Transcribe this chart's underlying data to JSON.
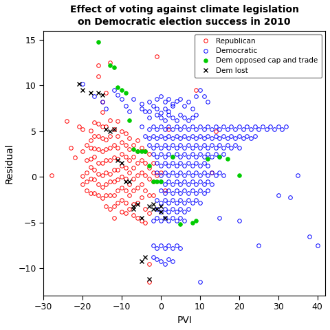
{
  "title": "Effect of voting against climate legislation\non Democratic election success in 2010",
  "xlabel": "PVI",
  "ylabel": "Residual",
  "xlim": [
    -30,
    42
  ],
  "ylim": [
    -13,
    16
  ],
  "xticks": [
    -30,
    -20,
    -10,
    0,
    10,
    20,
    30,
    40
  ],
  "yticks": [
    -10,
    -5,
    0,
    5,
    10,
    15
  ],
  "republican": [
    [
      -28,
      0.2
    ],
    [
      -24,
      6.1
    ],
    [
      -23,
      3.2
    ],
    [
      -22,
      2.1
    ],
    [
      -21,
      5.5
    ],
    [
      -20,
      5.2
    ],
    [
      -20,
      2.8
    ],
    [
      -20,
      0.1
    ],
    [
      -20,
      -0.8
    ],
    [
      -19,
      3.5
    ],
    [
      -19,
      1.8
    ],
    [
      -19,
      0.5
    ],
    [
      -19,
      -0.5
    ],
    [
      -19,
      -1.5
    ],
    [
      -18,
      5.1
    ],
    [
      -18,
      4.0
    ],
    [
      -18,
      3.2
    ],
    [
      -18,
      2.0
    ],
    [
      -18,
      1.1
    ],
    [
      -18,
      -0.2
    ],
    [
      -18,
      -1.8
    ],
    [
      -17,
      6.0
    ],
    [
      -17,
      4.5
    ],
    [
      -17,
      3.1
    ],
    [
      -17,
      2.2
    ],
    [
      -17,
      0.8
    ],
    [
      -17,
      -0.3
    ],
    [
      -17,
      -1.8
    ],
    [
      -16,
      12.2
    ],
    [
      -16,
      11.0
    ],
    [
      -16,
      5.8
    ],
    [
      -16,
      4.5
    ],
    [
      -16,
      3.0
    ],
    [
      -16,
      1.5
    ],
    [
      -16,
      0.3
    ],
    [
      -16,
      -0.8
    ],
    [
      -16,
      -2.0
    ],
    [
      -15,
      8.2
    ],
    [
      -15,
      7.1
    ],
    [
      -15,
      5.5
    ],
    [
      -15,
      4.2
    ],
    [
      -15,
      2.8
    ],
    [
      -15,
      1.5
    ],
    [
      -15,
      0.2
    ],
    [
      -15,
      -1.1
    ],
    [
      -15,
      -2.3
    ],
    [
      -14,
      9.2
    ],
    [
      -14,
      5.5
    ],
    [
      -14,
      4.1
    ],
    [
      -14,
      3.0
    ],
    [
      -14,
      1.8
    ],
    [
      -14,
      0.5
    ],
    [
      -14,
      -0.8
    ],
    [
      -14,
      -2.0
    ],
    [
      -14,
      -3.2
    ],
    [
      -13,
      12.5
    ],
    [
      -13,
      6.2
    ],
    [
      -13,
      4.5
    ],
    [
      -13,
      3.2
    ],
    [
      -13,
      1.8
    ],
    [
      -13,
      0.3
    ],
    [
      -13,
      -0.5
    ],
    [
      -13,
      -2.0
    ],
    [
      -13,
      -3.5
    ],
    [
      -12,
      5.2
    ],
    [
      -12,
      3.5
    ],
    [
      -12,
      2.1
    ],
    [
      -12,
      0.8
    ],
    [
      -12,
      -0.5
    ],
    [
      -12,
      -2.0
    ],
    [
      -12,
      -3.2
    ],
    [
      -12,
      -4.5
    ],
    [
      -11,
      6.1
    ],
    [
      -11,
      4.5
    ],
    [
      -11,
      3.2
    ],
    [
      -11,
      2.0
    ],
    [
      -11,
      0.8
    ],
    [
      -11,
      -0.3
    ],
    [
      -11,
      -1.5
    ],
    [
      -11,
      -2.8
    ],
    [
      -10,
      5.0
    ],
    [
      -10,
      3.8
    ],
    [
      -10,
      2.5
    ],
    [
      -10,
      1.2
    ],
    [
      -10,
      0.0
    ],
    [
      -10,
      -1.2
    ],
    [
      -10,
      -2.5
    ],
    [
      -10,
      -3.8
    ],
    [
      -9,
      4.8
    ],
    [
      -9,
      3.5
    ],
    [
      -9,
      2.2
    ],
    [
      -9,
      1.0
    ],
    [
      -9,
      -0.2
    ],
    [
      -9,
      -1.5
    ],
    [
      -9,
      -2.8
    ],
    [
      -9,
      -4.0
    ],
    [
      -8,
      4.2
    ],
    [
      -8,
      3.0
    ],
    [
      -8,
      1.8
    ],
    [
      -8,
      0.5
    ],
    [
      -8,
      -0.8
    ],
    [
      -8,
      -2.0
    ],
    [
      -8,
      -3.5
    ],
    [
      -7,
      3.5
    ],
    [
      -7,
      2.2
    ],
    [
      -7,
      1.0
    ],
    [
      -7,
      -0.2
    ],
    [
      -7,
      -1.5
    ],
    [
      -7,
      -3.0
    ],
    [
      -7,
      -4.2
    ],
    [
      -6,
      4.0
    ],
    [
      -6,
      2.8
    ],
    [
      -6,
      1.5
    ],
    [
      -6,
      0.2
    ],
    [
      -6,
      -1.2
    ],
    [
      -6,
      -2.8
    ],
    [
      -6,
      -4.5
    ],
    [
      -5,
      3.2
    ],
    [
      -5,
      1.8
    ],
    [
      -5,
      0.5
    ],
    [
      -5,
      -0.8
    ],
    [
      -5,
      -2.2
    ],
    [
      -5,
      -4.8
    ],
    [
      -4,
      2.8
    ],
    [
      -4,
      1.5
    ],
    [
      -4,
      0.2
    ],
    [
      -4,
      -1.5
    ],
    [
      -4,
      -3.5
    ],
    [
      -4,
      -5.0
    ],
    [
      -3,
      2.5
    ],
    [
      -3,
      1.0
    ],
    [
      -3,
      -0.2
    ],
    [
      -3,
      -2.0
    ],
    [
      -3,
      -4.0
    ],
    [
      -3,
      -9.5
    ],
    [
      -3,
      -11.5
    ],
    [
      -2,
      1.5
    ],
    [
      -2,
      0.5
    ],
    [
      -2,
      -0.5
    ],
    [
      -2,
      -2.0
    ],
    [
      -1,
      13.2
    ],
    [
      -1,
      0.2
    ],
    [
      0,
      0.5
    ],
    [
      1,
      -1.5
    ],
    [
      2,
      5.2
    ],
    [
      9,
      9.5
    ],
    [
      13,
      0.5
    ],
    [
      14,
      5.0
    ]
  ],
  "democratic": [
    [
      -20,
      10.2
    ],
    [
      -17,
      8.8
    ],
    [
      -15,
      8.2
    ],
    [
      -14,
      7.5
    ],
    [
      -12,
      9.5
    ],
    [
      -11,
      9.0
    ],
    [
      -10,
      8.5
    ],
    [
      -9,
      7.8
    ],
    [
      -8,
      7.2
    ],
    [
      -7,
      8.5
    ],
    [
      -5,
      8.0
    ],
    [
      -4,
      7.2
    ],
    [
      -3,
      8.2
    ],
    [
      -2,
      7.8
    ],
    [
      -1,
      8.5
    ],
    [
      0,
      8.8
    ],
    [
      1,
      8.2
    ],
    [
      2,
      8.5
    ],
    [
      3,
      8.0
    ],
    [
      4,
      8.3
    ],
    [
      5,
      8.5
    ],
    [
      6,
      7.8
    ],
    [
      7,
      8.2
    ],
    [
      8,
      7.5
    ],
    [
      9,
      8.8
    ],
    [
      10,
      9.5
    ],
    [
      11,
      8.8
    ],
    [
      12,
      8.2
    ],
    [
      -5,
      7.5
    ],
    [
      -3,
      7.2
    ],
    [
      -1,
      7.5
    ],
    [
      0,
      7.0
    ],
    [
      1,
      7.5
    ],
    [
      2,
      7.2
    ],
    [
      3,
      7.8
    ],
    [
      -3,
      6.5
    ],
    [
      -1,
      6.8
    ],
    [
      0,
      6.5
    ],
    [
      1,
      6.2
    ],
    [
      2,
      6.8
    ],
    [
      3,
      6.5
    ],
    [
      4,
      6.2
    ],
    [
      5,
      6.8
    ],
    [
      6,
      6.5
    ],
    [
      7,
      6.2
    ],
    [
      8,
      6.5
    ],
    [
      9,
      6.8
    ],
    [
      -5,
      5.5
    ],
    [
      -3,
      5.2
    ],
    [
      -2,
      5.5
    ],
    [
      -1,
      5.2
    ],
    [
      0,
      5.5
    ],
    [
      1,
      5.2
    ],
    [
      2,
      5.5
    ],
    [
      3,
      5.2
    ],
    [
      4,
      5.5
    ],
    [
      5,
      5.2
    ],
    [
      6,
      5.5
    ],
    [
      7,
      5.2
    ],
    [
      8,
      5.5
    ],
    [
      9,
      5.2
    ],
    [
      10,
      5.5
    ],
    [
      11,
      5.2
    ],
    [
      12,
      5.5
    ],
    [
      13,
      5.2
    ],
    [
      14,
      5.5
    ],
    [
      15,
      5.2
    ],
    [
      16,
      5.5
    ],
    [
      17,
      5.2
    ],
    [
      18,
      5.5
    ],
    [
      19,
      5.2
    ],
    [
      20,
      5.5
    ],
    [
      21,
      5.2
    ],
    [
      22,
      5.5
    ],
    [
      23,
      5.2
    ],
    [
      24,
      5.5
    ],
    [
      25,
      5.2
    ],
    [
      26,
      5.5
    ],
    [
      27,
      5.2
    ],
    [
      28,
      5.5
    ],
    [
      29,
      5.2
    ],
    [
      30,
      5.5
    ],
    [
      31,
      5.2
    ],
    [
      32,
      5.5
    ],
    [
      -4,
      4.5
    ],
    [
      -3,
      4.2
    ],
    [
      -2,
      4.5
    ],
    [
      -1,
      4.2
    ],
    [
      0,
      4.5
    ],
    [
      1,
      4.2
    ],
    [
      2,
      4.5
    ],
    [
      3,
      4.2
    ],
    [
      4,
      4.5
    ],
    [
      5,
      4.2
    ],
    [
      6,
      4.5
    ],
    [
      7,
      4.2
    ],
    [
      8,
      4.5
    ],
    [
      9,
      4.2
    ],
    [
      10,
      4.5
    ],
    [
      11,
      4.2
    ],
    [
      12,
      4.5
    ],
    [
      13,
      4.2
    ],
    [
      14,
      4.5
    ],
    [
      15,
      4.2
    ],
    [
      16,
      4.5
    ],
    [
      17,
      4.2
    ],
    [
      18,
      4.5
    ],
    [
      19,
      4.2
    ],
    [
      20,
      4.5
    ],
    [
      21,
      4.2
    ],
    [
      22,
      4.5
    ],
    [
      23,
      4.2
    ],
    [
      24,
      4.5
    ],
    [
      -3,
      3.5
    ],
    [
      -2,
      3.2
    ],
    [
      -1,
      3.5
    ],
    [
      0,
      3.2
    ],
    [
      1,
      3.5
    ],
    [
      2,
      3.2
    ],
    [
      3,
      3.5
    ],
    [
      4,
      3.2
    ],
    [
      5,
      3.5
    ],
    [
      6,
      3.2
    ],
    [
      7,
      3.5
    ],
    [
      8,
      3.2
    ],
    [
      9,
      3.5
    ],
    [
      10,
      3.2
    ],
    [
      11,
      3.5
    ],
    [
      12,
      3.2
    ],
    [
      13,
      3.5
    ],
    [
      14,
      3.2
    ],
    [
      15,
      3.5
    ],
    [
      16,
      3.2
    ],
    [
      17,
      3.5
    ],
    [
      18,
      3.2
    ],
    [
      19,
      3.5
    ],
    [
      20,
      3.2
    ],
    [
      -2,
      2.5
    ],
    [
      -1,
      2.2
    ],
    [
      0,
      2.5
    ],
    [
      1,
      2.2
    ],
    [
      2,
      2.5
    ],
    [
      3,
      2.2
    ],
    [
      4,
      2.5
    ],
    [
      5,
      2.2
    ],
    [
      6,
      2.5
    ],
    [
      7,
      2.2
    ],
    [
      8,
      2.5
    ],
    [
      9,
      2.2
    ],
    [
      10,
      2.5
    ],
    [
      11,
      2.2
    ],
    [
      12,
      2.5
    ],
    [
      13,
      2.2
    ],
    [
      14,
      2.5
    ],
    [
      15,
      2.2
    ],
    [
      16,
      2.5
    ],
    [
      -1,
      1.5
    ],
    [
      0,
      1.2
    ],
    [
      1,
      1.5
    ],
    [
      2,
      1.2
    ],
    [
      3,
      1.5
    ],
    [
      4,
      1.2
    ],
    [
      5,
      1.5
    ],
    [
      6,
      1.2
    ],
    [
      7,
      1.5
    ],
    [
      8,
      1.2
    ],
    [
      9,
      1.5
    ],
    [
      10,
      1.2
    ],
    [
      11,
      1.5
    ],
    [
      12,
      1.2
    ],
    [
      -1,
      0.5
    ],
    [
      0,
      0.2
    ],
    [
      1,
      0.5
    ],
    [
      2,
      0.2
    ],
    [
      3,
      0.5
    ],
    [
      4,
      0.2
    ],
    [
      5,
      0.5
    ],
    [
      6,
      0.2
    ],
    [
      7,
      0.5
    ],
    [
      8,
      0.2
    ],
    [
      9,
      0.5
    ],
    [
      10,
      0.2
    ],
    [
      11,
      0.5
    ],
    [
      12,
      0.2
    ],
    [
      13,
      0.5
    ],
    [
      14,
      0.2
    ],
    [
      15,
      0.5
    ],
    [
      16,
      0.2
    ],
    [
      0,
      -0.5
    ],
    [
      1,
      -0.8
    ],
    [
      2,
      -0.5
    ],
    [
      3,
      -0.8
    ],
    [
      4,
      -0.5
    ],
    [
      5,
      -0.8
    ],
    [
      6,
      -0.5
    ],
    [
      7,
      -0.8
    ],
    [
      8,
      -0.5
    ],
    [
      9,
      -0.8
    ],
    [
      10,
      -0.5
    ],
    [
      11,
      -0.8
    ],
    [
      12,
      -0.5
    ],
    [
      13,
      -0.8
    ],
    [
      0,
      -1.5
    ],
    [
      1,
      -1.8
    ],
    [
      2,
      -1.5
    ],
    [
      3,
      -1.8
    ],
    [
      4,
      -1.5
    ],
    [
      5,
      -1.8
    ],
    [
      6,
      -1.5
    ],
    [
      7,
      -1.8
    ],
    [
      8,
      -1.5
    ],
    [
      9,
      -1.8
    ],
    [
      10,
      -1.5
    ],
    [
      11,
      -1.8
    ],
    [
      12,
      -1.5
    ],
    [
      -1,
      -2.5
    ],
    [
      0,
      -2.8
    ],
    [
      1,
      -2.5
    ],
    [
      2,
      -2.8
    ],
    [
      3,
      -2.5
    ],
    [
      4,
      -2.8
    ],
    [
      5,
      -2.5
    ],
    [
      6,
      -2.8
    ],
    [
      7,
      -2.5
    ],
    [
      8,
      -2.8
    ],
    [
      9,
      -2.5
    ],
    [
      10,
      -2.8
    ],
    [
      -1,
      -3.5
    ],
    [
      0,
      -3.8
    ],
    [
      1,
      -3.5
    ],
    [
      2,
      -3.8
    ],
    [
      3,
      -3.5
    ],
    [
      4,
      -3.8
    ],
    [
      5,
      -3.5
    ],
    [
      6,
      -3.8
    ],
    [
      7,
      -3.5
    ],
    [
      -2,
      -4.8
    ],
    [
      -1,
      -4.5
    ],
    [
      0,
      -4.8
    ],
    [
      1,
      -4.5
    ],
    [
      2,
      -4.8
    ],
    [
      3,
      -4.5
    ],
    [
      4,
      -4.8
    ],
    [
      5,
      -4.5
    ],
    [
      6,
      -4.8
    ],
    [
      -2,
      -7.5
    ],
    [
      -1,
      -7.8
    ],
    [
      0,
      -7.5
    ],
    [
      1,
      -7.8
    ],
    [
      2,
      -7.5
    ],
    [
      3,
      -7.8
    ],
    [
      4,
      -7.5
    ],
    [
      5,
      -7.8
    ],
    [
      -2,
      -8.8
    ],
    [
      -1,
      -9.0
    ],
    [
      0,
      -9.2
    ],
    [
      1,
      -9.5
    ],
    [
      2,
      -9.0
    ],
    [
      3,
      -9.2
    ],
    [
      10,
      -11.5
    ],
    [
      15,
      -4.5
    ],
    [
      20,
      -4.8
    ],
    [
      25,
      -7.5
    ],
    [
      30,
      -2.0
    ],
    [
      33,
      -2.2
    ],
    [
      35,
      0.2
    ],
    [
      38,
      -6.5
    ],
    [
      40,
      -7.5
    ]
  ],
  "dem_opposed": [
    [
      -16,
      14.8
    ],
    [
      -13,
      12.2
    ],
    [
      -12,
      12.0
    ],
    [
      -11,
      9.8
    ],
    [
      -10,
      9.5
    ],
    [
      -9,
      9.2
    ],
    [
      -8,
      6.2
    ],
    [
      -7,
      3.0
    ],
    [
      -6,
      2.8
    ],
    [
      -5,
      2.8
    ],
    [
      -4,
      2.8
    ],
    [
      -3,
      1.2
    ],
    [
      -2,
      -0.5
    ],
    [
      -1,
      -0.5
    ],
    [
      0,
      -0.5
    ],
    [
      3,
      2.2
    ],
    [
      5,
      -5.2
    ],
    [
      8,
      -5.0
    ],
    [
      9,
      -4.8
    ],
    [
      12,
      2.0
    ],
    [
      15,
      2.2
    ],
    [
      17,
      2.0
    ],
    [
      20,
      0.2
    ]
  ],
  "dem_lost": [
    [
      -21,
      10.2
    ],
    [
      -20,
      9.5
    ],
    [
      -18,
      9.2
    ],
    [
      -16,
      9.2
    ],
    [
      -15,
      9.0
    ],
    [
      -14,
      5.2
    ],
    [
      -13,
      5.0
    ],
    [
      -12,
      5.2
    ],
    [
      -11,
      1.8
    ],
    [
      -10,
      1.5
    ],
    [
      -9,
      -0.5
    ],
    [
      -8,
      -0.5
    ],
    [
      -7,
      -3.5
    ],
    [
      -7,
      -3.2
    ],
    [
      -6,
      -3.0
    ],
    [
      -5,
      -4.5
    ],
    [
      -5,
      -9.2
    ],
    [
      -4,
      -8.8
    ],
    [
      -3,
      -11.2
    ],
    [
      -3,
      -3.2
    ],
    [
      -2,
      -3.0
    ],
    [
      -2,
      -3.5
    ],
    [
      -1,
      -3.5
    ],
    [
      0,
      -3.8
    ],
    [
      0,
      -3.2
    ],
    [
      1,
      -4.5
    ]
  ],
  "republican_color": "#FF0000",
  "democratic_color": "#0000FF",
  "dem_opposed_color": "#00CC00",
  "dem_lost_color": "#000000",
  "markersize": 4,
  "linewidth": 0.7,
  "figsize": [
    4.8,
    4.8
  ],
  "dpi": 100
}
